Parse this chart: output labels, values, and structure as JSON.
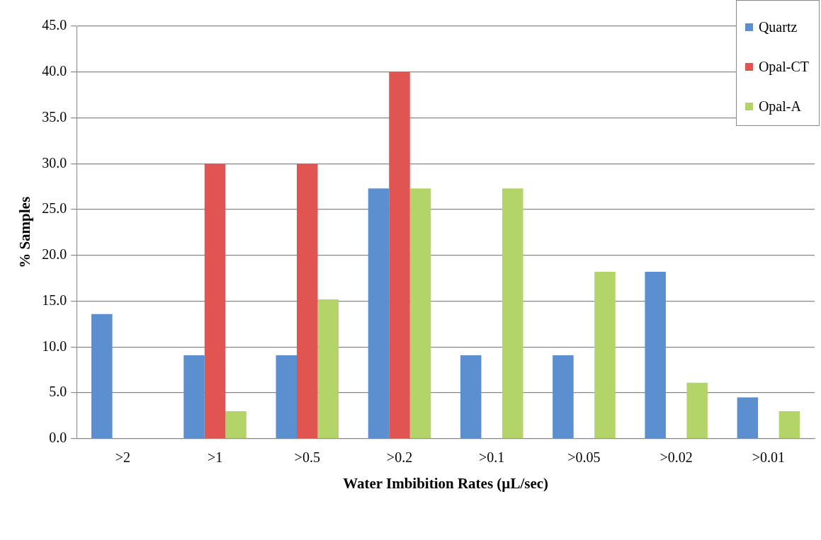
{
  "chart_data": {
    "type": "bar",
    "xlabel": "Water Imbibition Rates (µL/sec)",
    "ylabel": "% Samples",
    "categories": [
      ">2",
      ">1",
      ">0.5",
      ">0.2",
      ">0.1",
      ">0.05",
      ">0.02",
      ">0.01"
    ],
    "series": [
      {
        "name": "Quartz",
        "color": "#5b8fcf",
        "values": [
          13.6,
          9.1,
          9.1,
          27.3,
          9.1,
          9.1,
          18.2,
          4.5
        ]
      },
      {
        "name": "Opal-CT",
        "color": "#e05452",
        "values": [
          0,
          30,
          30,
          40,
          0,
          0,
          0,
          0
        ]
      },
      {
        "name": "Opal-A",
        "color": "#b3d468",
        "values": [
          0,
          3.0,
          15.2,
          27.3,
          27.3,
          18.2,
          6.1,
          3.0
        ]
      }
    ],
    "ylim": [
      0,
      45
    ],
    "yticks": [
      {
        "value": 0,
        "label": "0.0"
      },
      {
        "value": 5,
        "label": "5.0"
      },
      {
        "value": 10,
        "label": "10.0"
      },
      {
        "value": 15,
        "label": "15.0"
      },
      {
        "value": 20,
        "label": "20.0"
      },
      {
        "value": 25,
        "label": "25.0"
      },
      {
        "value": 30,
        "label": "30.0"
      },
      {
        "value": 35,
        "label": "35.0"
      },
      {
        "value": 40,
        "label": "40.0"
      },
      {
        "value": 45,
        "label": "45.0"
      }
    ],
    "grid": "y",
    "legend": "top right"
  }
}
